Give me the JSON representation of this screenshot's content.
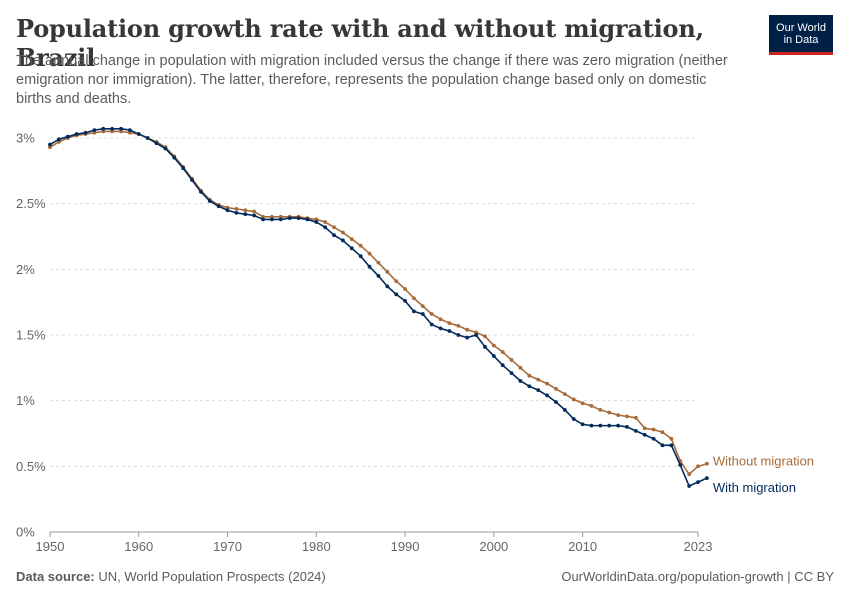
{
  "header": {
    "title": "Population growth rate with and without migration, Brazil",
    "subtitle": "The annual change in population with migration included versus the change if there was zero migration (neither emigration nor immigration). The latter, therefore, represents the population change based only on domestic births and deaths."
  },
  "logo": {
    "line1": "Our World",
    "line2": "in Data"
  },
  "footer": {
    "source_label": "Data source:",
    "source_text": " UN, World Population Prospects (2024)",
    "link_text": "OurWorldinData.org/population-growth",
    "license_text": " | CC BY"
  },
  "colors": {
    "with_migration": "#002b5c",
    "without_migration": "#a76b3a",
    "grid": "#dddddd",
    "axis": "#999999"
  },
  "chart_data": {
    "type": "line",
    "title": "Population growth rate with and without migration, Brazil",
    "xlabel": "",
    "ylabel": "",
    "xlim": [
      1950,
      2023
    ],
    "ylim": [
      0,
      3
    ],
    "y_ticks": [
      {
        "value": 0,
        "label": "0%"
      },
      {
        "value": 0.5,
        "label": "0.5%"
      },
      {
        "value": 1,
        "label": "1%"
      },
      {
        "value": 1.5,
        "label": "1.5%"
      },
      {
        "value": 2,
        "label": "2%"
      },
      {
        "value": 2.5,
        "label": "2.5%"
      },
      {
        "value": 3,
        "label": "3%"
      }
    ],
    "x_ticks": [
      {
        "value": 1950,
        "label": "1950"
      },
      {
        "value": 1960,
        "label": "1960"
      },
      {
        "value": 1970,
        "label": "1970"
      },
      {
        "value": 1980,
        "label": "1980"
      },
      {
        "value": 1990,
        "label": "1990"
      },
      {
        "value": 2000,
        "label": "2000"
      },
      {
        "value": 2010,
        "label": "2010"
      },
      {
        "value": 2023,
        "label": "2023"
      }
    ],
    "grid": true,
    "x_start": 1950,
    "series": [
      {
        "name": "Without migration",
        "key": "without_migration",
        "values": [
          2.93,
          2.97,
          3.0,
          3.02,
          3.03,
          3.04,
          3.05,
          3.05,
          3.05,
          3.04,
          3.03,
          3.0,
          2.97,
          2.93,
          2.86,
          2.78,
          2.69,
          2.6,
          2.53,
          2.49,
          2.47,
          2.46,
          2.45,
          2.44,
          2.4,
          2.4,
          2.4,
          2.4,
          2.4,
          2.39,
          2.38,
          2.36,
          2.32,
          2.28,
          2.23,
          2.18,
          2.12,
          2.05,
          1.98,
          1.91,
          1.85,
          1.78,
          1.72,
          1.66,
          1.62,
          1.59,
          1.57,
          1.54,
          1.52,
          1.49,
          1.42,
          1.37,
          1.31,
          1.25,
          1.19,
          1.16,
          1.13,
          1.09,
          1.05,
          1.01,
          0.98,
          0.96,
          0.93,
          0.91,
          0.89,
          0.88,
          0.87,
          0.79,
          0.78,
          0.76,
          0.71,
          0.54,
          0.44,
          0.5,
          0.52
        ]
      },
      {
        "name": "With migration",
        "key": "with_migration",
        "values": [
          2.95,
          2.99,
          3.01,
          3.03,
          3.04,
          3.06,
          3.07,
          3.07,
          3.07,
          3.06,
          3.03,
          3.0,
          2.96,
          2.92,
          2.85,
          2.77,
          2.68,
          2.59,
          2.52,
          2.48,
          2.45,
          2.43,
          2.42,
          2.41,
          2.38,
          2.38,
          2.38,
          2.39,
          2.39,
          2.38,
          2.36,
          2.32,
          2.26,
          2.22,
          2.16,
          2.1,
          2.02,
          1.95,
          1.87,
          1.81,
          1.76,
          1.68,
          1.66,
          1.58,
          1.55,
          1.53,
          1.5,
          1.48,
          1.5,
          1.41,
          1.34,
          1.27,
          1.21,
          1.15,
          1.11,
          1.08,
          1.04,
          0.99,
          0.93,
          0.86,
          0.82,
          0.81,
          0.81,
          0.81,
          0.81,
          0.8,
          0.77,
          0.74,
          0.71,
          0.66,
          0.66,
          0.51,
          0.35,
          0.38,
          0.41
        ]
      }
    ]
  }
}
